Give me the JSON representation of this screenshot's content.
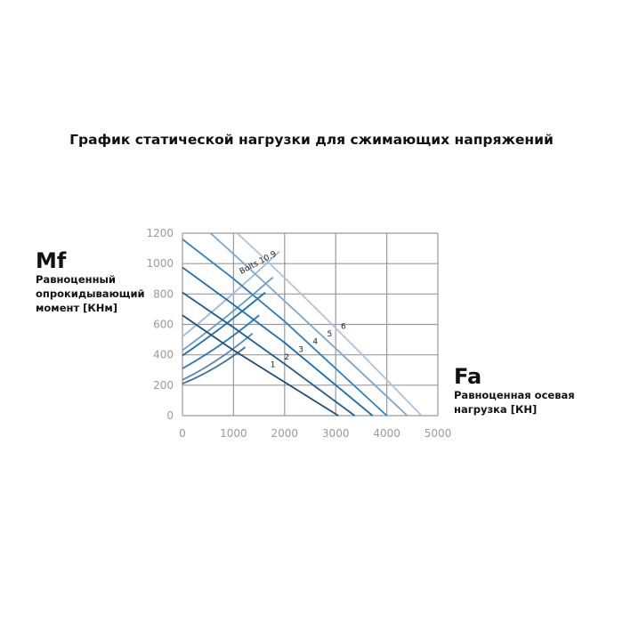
{
  "title": "График статической нагрузки для сжимающих напряжений",
  "y_axis": {
    "symbol": "Mf",
    "label": "Равноценный опрокидывающий момент [КНм]"
  },
  "x_axis": {
    "symbol": "Fa",
    "label": "Равноценная осевая нагрузка [КН]"
  },
  "chart_data": {
    "type": "line",
    "title": "График статической нагрузки для сжимающих напряжений",
    "xlabel": "Fa Равноценная осевая нагрузка [КН]",
    "ylabel": "Mf Равноценный опрокидывающий момент [КНм]",
    "xlim": [
      0,
      5000
    ],
    "ylim": [
      0,
      1200
    ],
    "x_ticks": [
      "0",
      "1000",
      "2000",
      "3000",
      "4000",
      "5000"
    ],
    "y_ticks": [
      "0",
      "200",
      "400",
      "600",
      "800",
      "1000",
      "1200"
    ],
    "grid": true,
    "annotation": "Bolts 10.9",
    "series": [
      {
        "name": "1",
        "color": "#1f4e79",
        "points": [
          [
            0,
            660
          ],
          [
            1000,
            430
          ],
          [
            2000,
            220
          ],
          [
            3050,
            0
          ]
        ]
      },
      {
        "name": "2",
        "color": "#1d5f95",
        "points": [
          [
            0,
            810
          ],
          [
            1000,
            580
          ],
          [
            2000,
            340
          ],
          [
            3370,
            0
          ]
        ]
      },
      {
        "name": "3",
        "color": "#1a6fae",
        "points": [
          [
            0,
            975
          ],
          [
            1000,
            730
          ],
          [
            2000,
            480
          ],
          [
            3720,
            0
          ]
        ]
      },
      {
        "name": "4",
        "color": "#2a80c0",
        "points": [
          [
            0,
            1160
          ],
          [
            1000,
            900
          ],
          [
            2000,
            620
          ],
          [
            4000,
            0
          ]
        ]
      },
      {
        "name": "5",
        "color": "#7aa6d0",
        "points": [
          [
            550,
            1200
          ],
          [
            2000,
            760
          ],
          [
            4400,
            0
          ]
        ]
      },
      {
        "name": "6",
        "color": "#a8c4e2",
        "points": [
          [
            1070,
            1200
          ],
          [
            2500,
            760
          ],
          [
            4680,
            0
          ]
        ]
      }
    ],
    "bolt_curves": [
      {
        "color": "#3f6f9a",
        "points": [
          [
            0,
            210
          ],
          [
            600,
            290
          ],
          [
            1230,
            450
          ]
        ]
      },
      {
        "color": "#5b88b3",
        "points": [
          [
            0,
            235
          ],
          [
            700,
            350
          ],
          [
            1370,
            540
          ]
        ]
      },
      {
        "color": "#2e78b8",
        "points": [
          [
            0,
            310
          ],
          [
            750,
            450
          ],
          [
            1500,
            660
          ]
        ]
      },
      {
        "color": "#1f6eae",
        "points": [
          [
            0,
            395
          ],
          [
            800,
            580
          ],
          [
            1620,
            810
          ]
        ]
      },
      {
        "color": "#6b9bc8",
        "points": [
          [
            0,
            430
          ],
          [
            900,
            650
          ],
          [
            1770,
            910
          ]
        ]
      },
      {
        "color": "#9dbbdc",
        "points": [
          [
            0,
            520
          ],
          [
            950,
            780
          ],
          [
            1900,
            1080
          ]
        ]
      }
    ],
    "labels": [
      {
        "text": "1",
        "x": 1770,
        "y": 320
      },
      {
        "text": "2",
        "x": 2040,
        "y": 370
      },
      {
        "text": "3",
        "x": 2320,
        "y": 420
      },
      {
        "text": "4",
        "x": 2600,
        "y": 470
      },
      {
        "text": "5",
        "x": 2880,
        "y": 520
      },
      {
        "text": "6",
        "x": 3150,
        "y": 570
      }
    ]
  }
}
